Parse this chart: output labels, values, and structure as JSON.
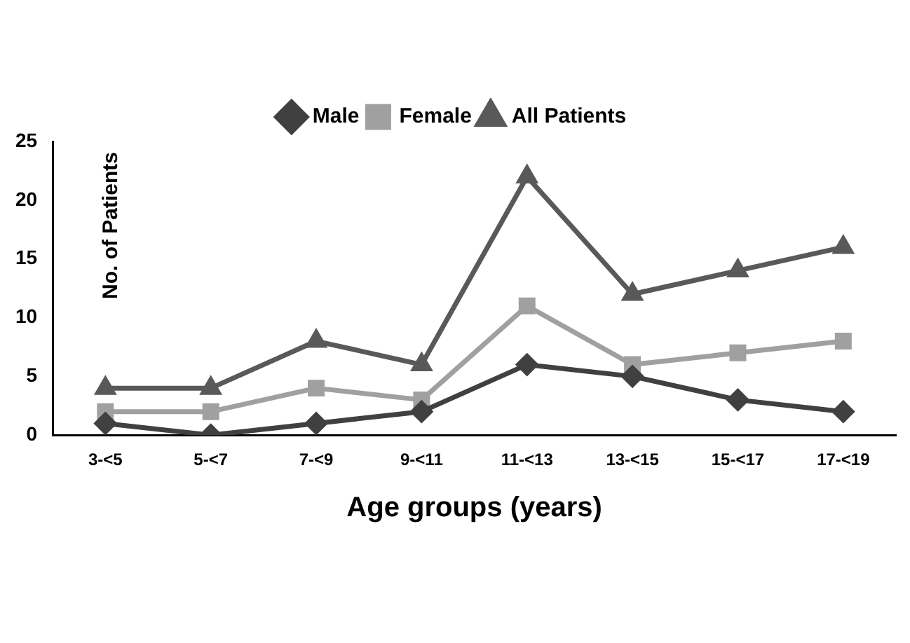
{
  "chart_data": {
    "type": "line",
    "xlabel": "Age groups (years)",
    "ylabel": "No. of Patients",
    "categories": [
      "3-<5",
      "5-<7",
      "7-<9",
      "9-<11",
      "11-<13",
      "13-<15",
      "15-<17",
      "17-<19"
    ],
    "series": [
      {
        "name": "Male",
        "color": "#404040",
        "marker": "diamond",
        "values": [
          1,
          0,
          1,
          2,
          6,
          5,
          3,
          2
        ]
      },
      {
        "name": "Female",
        "color": "#a0a0a0",
        "marker": "square",
        "values": [
          2,
          2,
          4,
          3,
          11,
          6,
          7,
          8
        ]
      },
      {
        "name": "All Patients",
        "color": "#595959",
        "marker": "triangle",
        "values": [
          4,
          4,
          8,
          6,
          22,
          12,
          14,
          16
        ]
      }
    ],
    "ylim": [
      0,
      25
    ],
    "yticks": [
      0,
      5,
      10,
      15,
      20,
      25
    ],
    "grid": false,
    "legend": "top"
  }
}
